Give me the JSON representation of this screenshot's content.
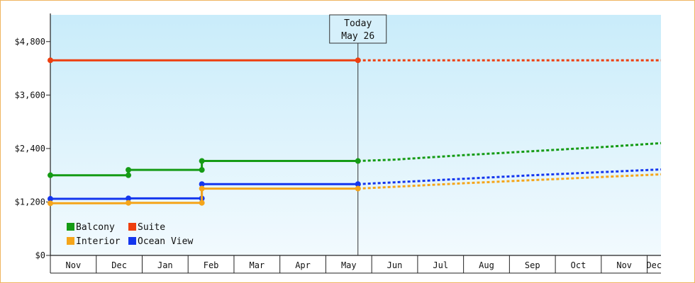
{
  "chart_data": {
    "type": "line",
    "ylim": [
      0,
      5400
    ],
    "y_ticks": [
      0,
      1200,
      2400,
      3600,
      4800
    ],
    "y_tick_labels": [
      "$0",
      "$1,200",
      "$2,400",
      "$3,600",
      "$4,800"
    ],
    "months": [
      "Nov",
      "Dec",
      "Jan",
      "Feb",
      "Mar",
      "Apr",
      "May",
      "Jun",
      "Jul",
      "Aug",
      "Sep",
      "Oct",
      "Nov",
      "Dec"
    ],
    "today_marker": {
      "line1": "Today",
      "line2": "May 26",
      "x": 6.7
    },
    "x_range": [
      0,
      13.3
    ],
    "grid": false,
    "legend_placement": "bottom-left",
    "series": [
      {
        "name": "Suite",
        "color": "#ee3f0f",
        "history": [
          [
            0,
            4380
          ],
          [
            6.7,
            4380
          ]
        ],
        "markers": [
          [
            0,
            4380
          ],
          [
            6.7,
            4380
          ]
        ],
        "forecast": [
          [
            6.7,
            4380
          ],
          [
            13.3,
            4380
          ]
        ]
      },
      {
        "name": "Balcony",
        "color": "#159b15",
        "history": [
          [
            0,
            1800
          ],
          [
            1.7,
            1800
          ],
          [
            1.7,
            1920
          ],
          [
            3.3,
            1920
          ],
          [
            3.3,
            2120
          ],
          [
            6.7,
            2120
          ]
        ],
        "markers": [
          [
            0,
            1800
          ],
          [
            1.7,
            1800
          ],
          [
            1.7,
            1920
          ],
          [
            3.3,
            1920
          ],
          [
            3.3,
            2120
          ],
          [
            6.7,
            2120
          ]
        ],
        "forecast": [
          [
            6.7,
            2120
          ],
          [
            7.5,
            2150
          ],
          [
            9,
            2250
          ],
          [
            10.5,
            2340
          ],
          [
            12,
            2430
          ],
          [
            13.3,
            2520
          ]
        ]
      },
      {
        "name": "Ocean View",
        "color": "#1436ee",
        "history": [
          [
            0,
            1270
          ],
          [
            1.7,
            1270
          ],
          [
            1.7,
            1280
          ],
          [
            3.3,
            1280
          ],
          [
            3.3,
            1600
          ],
          [
            6.7,
            1600
          ]
        ],
        "markers": [
          [
            0,
            1270
          ],
          [
            1.7,
            1280
          ],
          [
            3.3,
            1280
          ],
          [
            3.3,
            1600
          ],
          [
            6.7,
            1600
          ]
        ],
        "forecast": [
          [
            6.7,
            1600
          ],
          [
            7.5,
            1640
          ],
          [
            9,
            1720
          ],
          [
            10.5,
            1800
          ],
          [
            12,
            1870
          ],
          [
            13.3,
            1930
          ]
        ]
      },
      {
        "name": "Interior",
        "color": "#f5a51a",
        "history": [
          [
            0,
            1170
          ],
          [
            1.7,
            1170
          ],
          [
            1.7,
            1180
          ],
          [
            3.3,
            1180
          ],
          [
            3.3,
            1500
          ],
          [
            6.7,
            1500
          ]
        ],
        "markers": [
          [
            0,
            1170
          ],
          [
            1.7,
            1180
          ],
          [
            3.3,
            1180
          ],
          [
            3.3,
            1500
          ],
          [
            6.7,
            1500
          ]
        ],
        "forecast": [
          [
            6.7,
            1500
          ],
          [
            7.5,
            1540
          ],
          [
            9,
            1620
          ],
          [
            10.5,
            1690
          ],
          [
            12,
            1760
          ],
          [
            13.3,
            1820
          ]
        ]
      }
    ],
    "legend": [
      {
        "name": "Balcony",
        "color": "#159b15"
      },
      {
        "name": "Suite",
        "color": "#ee3f0f"
      },
      {
        "name": "Interior",
        "color": "#f5a51a"
      },
      {
        "name": "Ocean View",
        "color": "#1436ee"
      }
    ]
  }
}
